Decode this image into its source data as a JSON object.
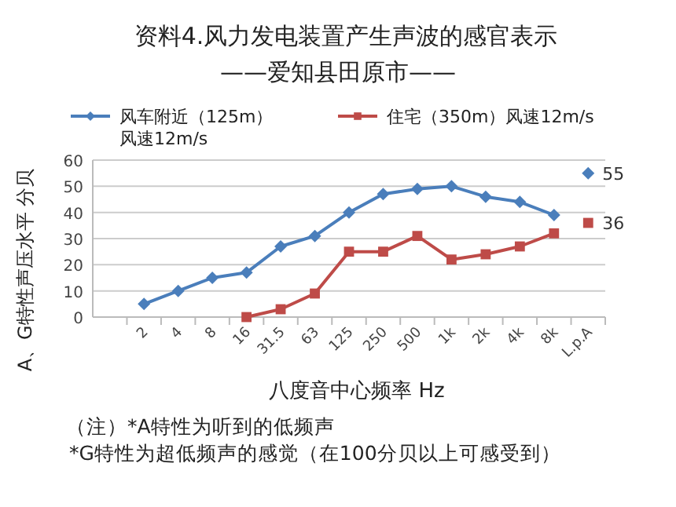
{
  "chart_data": {
    "type": "line",
    "title": "资料4.风力发电装置产生声波的感官表示",
    "subtitle": "——爱知县田原市——",
    "xlabel": "八度音中心频率 Hz",
    "ylabel": "A、G特性声压水平 分贝",
    "categories": [
      null,
      "2",
      "4",
      "8",
      "16",
      "31.5",
      "63",
      "125",
      "250",
      "500",
      "1k",
      "2k",
      "4k",
      "8k",
      "L.p.A"
    ],
    "series": [
      {
        "name": "风车附近（125m）风速12m/s",
        "color": "#4a7ebb",
        "marker": "diamond",
        "values": [
          null,
          5,
          10,
          15,
          17,
          27,
          31,
          40,
          47,
          49,
          50,
          46,
          44,
          39,
          null
        ]
      },
      {
        "name": "住宅（350m）风速12m/s",
        "color": "#be4b48",
        "marker": "square",
        "values": [
          null,
          null,
          null,
          null,
          0,
          3,
          9,
          25,
          25,
          31,
          22,
          24,
          27,
          32,
          null
        ]
      },
      {
        "type": "scatter",
        "color": "#4a7ebb",
        "marker": "diamond",
        "values": [
          null,
          null,
          null,
          null,
          null,
          null,
          null,
          null,
          null,
          null,
          null,
          null,
          null,
          null,
          55
        ],
        "value_labels": [
          null,
          null,
          null,
          null,
          null,
          null,
          null,
          null,
          null,
          null,
          null,
          null,
          null,
          null,
          "55"
        ]
      },
      {
        "type": "scatter",
        "color": "#be4b48",
        "marker": "square",
        "values": [
          null,
          null,
          null,
          null,
          null,
          null,
          null,
          null,
          null,
          null,
          null,
          null,
          null,
          null,
          36
        ],
        "value_labels": [
          null,
          null,
          null,
          null,
          null,
          null,
          null,
          null,
          null,
          null,
          null,
          null,
          null,
          null,
          "36"
        ]
      }
    ],
    "ylim": [
      0,
      60
    ],
    "yticks": [
      0,
      10,
      20,
      30,
      40,
      50,
      60
    ],
    "grid": "y",
    "legend": "top",
    "annotations": [
      "（注）*A特性为听到的低频声",
      "*G特性为超低频声的感觉（在100分贝以上可感受到）"
    ]
  }
}
